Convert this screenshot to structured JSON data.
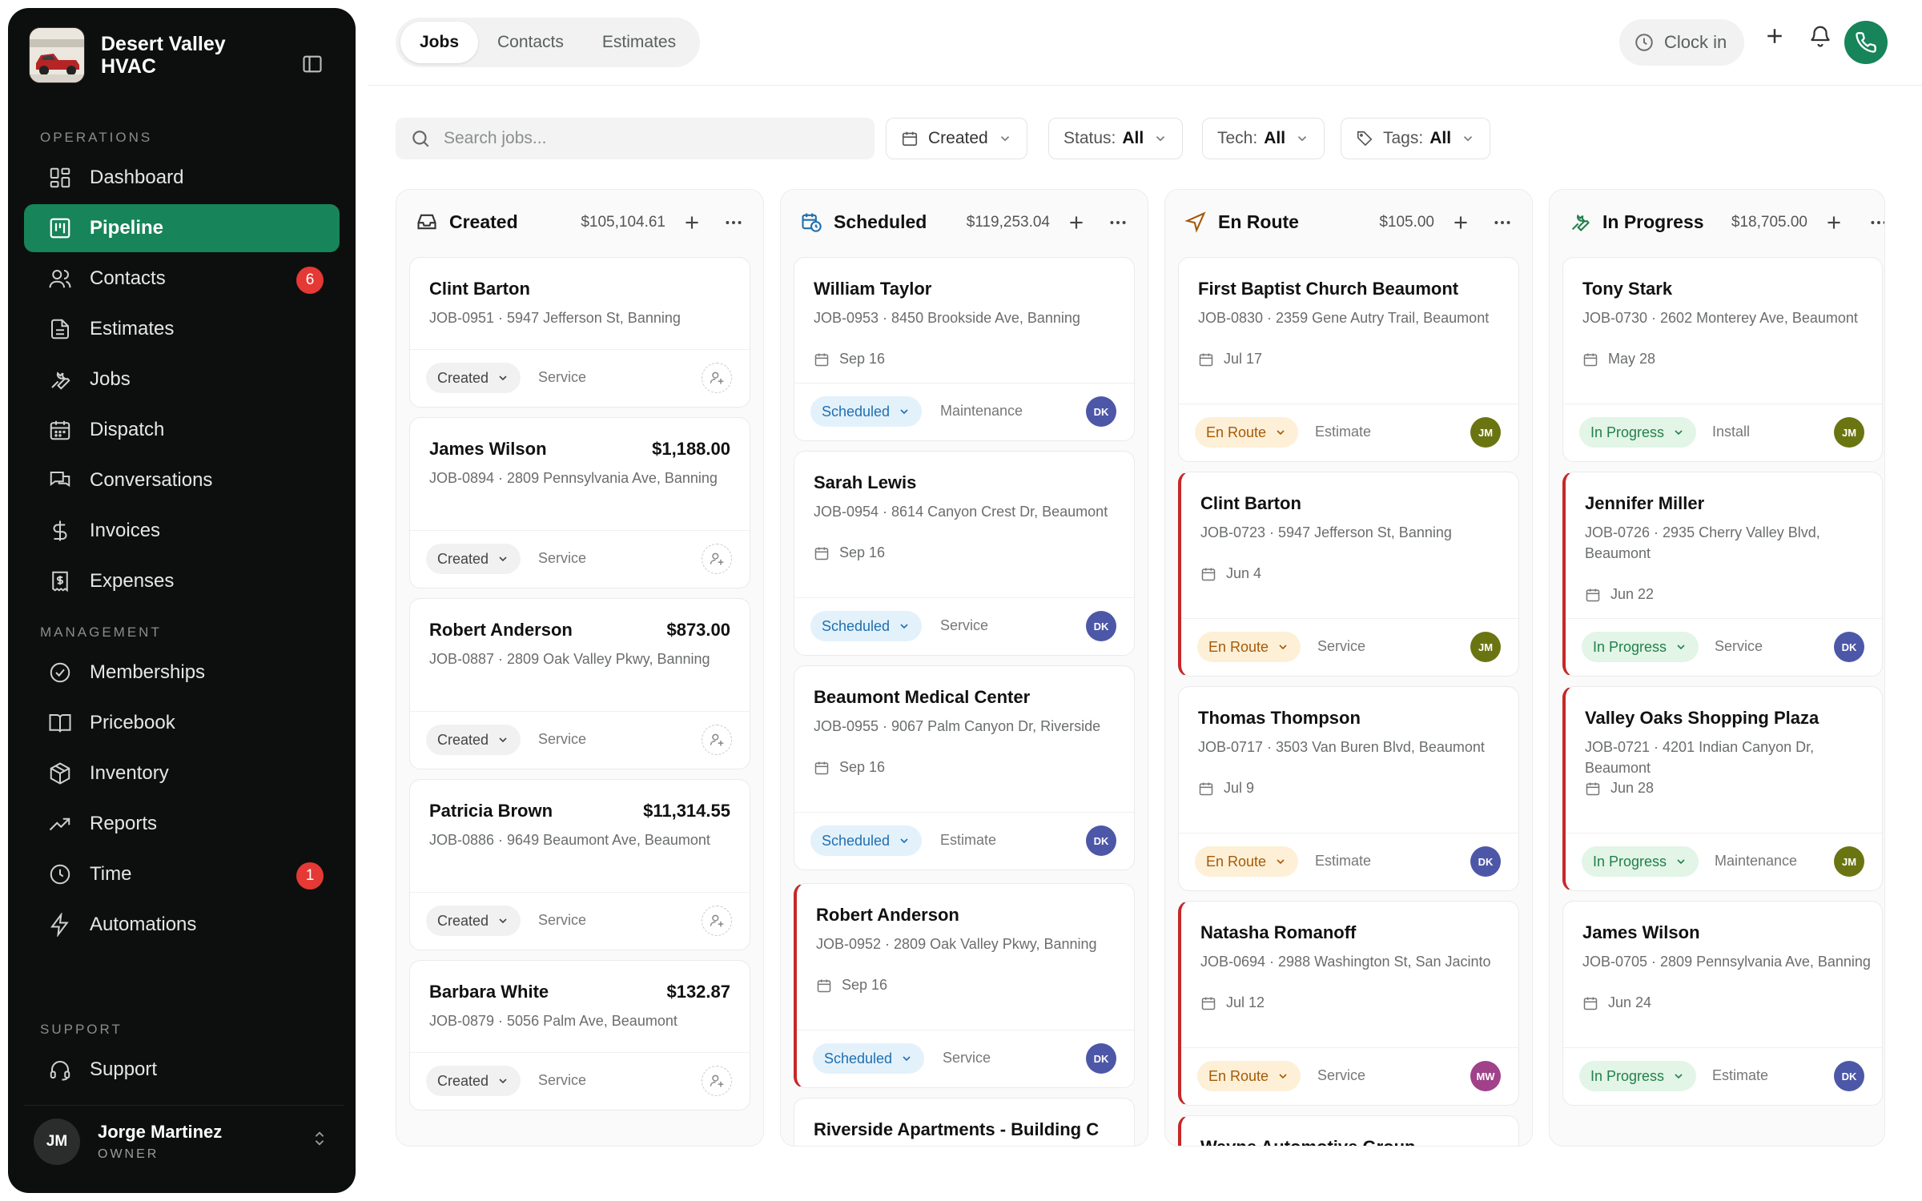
{
  "company": {
    "name_line1": "Desert Valley",
    "name_line2": "HVAC"
  },
  "nav": {
    "sections": {
      "operations": "OPERATIONS",
      "management": "MANAGEMENT",
      "support": "SUPPORT"
    },
    "items": [
      {
        "label": "Dashboard",
        "icon": "dashboard-icon"
      },
      {
        "label": "Pipeline",
        "icon": "pipeline-icon",
        "active": true
      },
      {
        "label": "Contacts",
        "icon": "contacts-icon",
        "badge": "6"
      },
      {
        "label": "Estimates",
        "icon": "estimates-icon"
      },
      {
        "label": "Jobs",
        "icon": "wrench-icon"
      },
      {
        "label": "Dispatch",
        "icon": "calendar-icon"
      },
      {
        "label": "Conversations",
        "icon": "chat-icon"
      },
      {
        "label": "Invoices",
        "icon": "dollar-icon"
      },
      {
        "label": "Expenses",
        "icon": "receipt-icon"
      },
      {
        "label": "Memberships",
        "icon": "badge-check-icon"
      },
      {
        "label": "Pricebook",
        "icon": "book-icon"
      },
      {
        "label": "Inventory",
        "icon": "box-icon"
      },
      {
        "label": "Reports",
        "icon": "trend-icon"
      },
      {
        "label": "Time",
        "icon": "clock-icon",
        "badge": "1"
      },
      {
        "label": "Automations",
        "icon": "bolt-icon"
      },
      {
        "label": "Support",
        "icon": "headset-icon"
      }
    ]
  },
  "user": {
    "initials": "JM",
    "name": "Jorge Martinez",
    "role": "OWNER"
  },
  "tabs": [
    "Jobs",
    "Contacts",
    "Estimates"
  ],
  "header": {
    "clock_in": "Clock in"
  },
  "toolbar": {
    "search_placeholder": "Search jobs...",
    "sort_label": "Created",
    "status_label": "Status:",
    "status_value": "All",
    "tech_label": "Tech:",
    "tech_value": "All",
    "tags_label": "Tags:",
    "tags_value": "All"
  },
  "colors": {
    "accent": "#17845a",
    "badge": "#e53935",
    "late_border": "#c62828"
  },
  "columns": [
    {
      "title": "Created",
      "amount": "$105,104.61",
      "icon": "inbox-icon",
      "cards": [
        {
          "name": "Clint Barton",
          "amount": "",
          "sub": "JOB-0951 · 5947 Jefferson St, Banning",
          "date": "",
          "status": "Created",
          "type": "Service",
          "tech": ""
        },
        {
          "name": "James Wilson",
          "amount": "$1,188.00",
          "sub": "JOB-0894 · 2809 Pennsylvania Ave, Banning",
          "date": "",
          "status": "Created",
          "type": "Service",
          "tech": ""
        },
        {
          "name": "Robert Anderson",
          "amount": "$873.00",
          "sub": "JOB-0887 · 2809 Oak Valley Pkwy, Banning",
          "date": "",
          "status": "Created",
          "type": "Service",
          "tech": ""
        },
        {
          "name": "Patricia Brown",
          "amount": "$11,314.55",
          "sub": "JOB-0886 · 9649 Beaumont Ave, Beaumont",
          "date": "",
          "status": "Created",
          "type": "Service",
          "tech": ""
        },
        {
          "name": "Barbara White",
          "amount": "$132.87",
          "sub": "JOB-0879 · 5056 Palm Ave, Beaumont",
          "date": "",
          "status": "Created",
          "type": "Service",
          "tech": ""
        }
      ]
    },
    {
      "title": "Scheduled",
      "amount": "$119,253.04",
      "icon": "calendar-clock-icon",
      "cards": [
        {
          "name": "William Taylor",
          "sub": "JOB-0953 · 8450 Brookside Ave, Banning",
          "date": "Sep 16",
          "status": "Scheduled",
          "type": "Maintenance",
          "tech": "DK"
        },
        {
          "name": "Sarah Lewis",
          "sub": "JOB-0954 · 8614 Canyon Crest Dr, Beaumont",
          "date": "Sep 16",
          "status": "Scheduled",
          "type": "Service",
          "tech": "DK"
        },
        {
          "name": "Beaumont Medical Center",
          "sub": "JOB-0955 · 9067 Palm Canyon Dr, Riverside",
          "date": "Sep 16",
          "status": "Scheduled",
          "type": "Estimate",
          "tech": "DK"
        },
        {
          "name": "Robert Anderson",
          "sub": "JOB-0952 · 2809 Oak Valley Pkwy, Banning",
          "date": "Sep 16",
          "status": "Scheduled",
          "type": "Service",
          "tech": "DK",
          "late": true
        },
        {
          "name": "Riverside Apartments - Building C"
        }
      ]
    },
    {
      "title": "En Route",
      "amount": "$105.00",
      "icon": "navigation-icon",
      "cards": [
        {
          "name": "First Baptist Church Beaumont",
          "sub": "JOB-0830 · 2359 Gene Autry Trail, Beaumont",
          "date": "Jul 17",
          "status": "En Route",
          "type": "Estimate",
          "tech": "JM"
        },
        {
          "name": "Clint Barton",
          "sub": "JOB-0723 · 5947 Jefferson St, Banning",
          "date": "Jun 4",
          "status": "En Route",
          "type": "Service",
          "tech": "JM",
          "late": true
        },
        {
          "name": "Thomas Thompson",
          "sub": "JOB-0717 · 3503 Van Buren Blvd, Beaumont",
          "date": "Jul 9",
          "status": "En Route",
          "type": "Estimate",
          "tech": "DK"
        },
        {
          "name": "Natasha Romanoff",
          "sub": "JOB-0694 · 2988 Washington St, San Jacinto",
          "date": "Jul 12",
          "status": "En Route",
          "type": "Service",
          "tech": "MW",
          "late": true
        },
        {
          "name": "Wayne Automotive Group",
          "late": true
        }
      ]
    },
    {
      "title": "In Progress",
      "amount": "$18,705.00",
      "icon": "wrench-icon",
      "cards": [
        {
          "name": "Tony Stark",
          "sub": "JOB-0730 · 2602 Monterey Ave, Beaumont",
          "date": "May 28",
          "status": "In Progress",
          "type": "Install",
          "tech": "JM"
        },
        {
          "name": "Jennifer Miller",
          "sub": "JOB-0726 · 2935 Cherry Valley Blvd, Beaumont",
          "date": "Jun 22",
          "status": "In Progress",
          "type": "Service",
          "tech": "DK",
          "late": true
        },
        {
          "name": "Valley Oaks Shopping Plaza",
          "sub": "JOB-0721 · 4201 Indian Canyon Dr, Beaumont",
          "date": "Jun 28",
          "status": "In Progress",
          "type": "Maintenance",
          "tech": "JM",
          "late": true
        },
        {
          "name": "James Wilson",
          "sub": "JOB-0705 · 2809 Pennsylvania Ave, Banning",
          "date": "Jun 24",
          "status": "In Progress",
          "type": "Estimate",
          "tech": "DK"
        }
      ]
    }
  ]
}
